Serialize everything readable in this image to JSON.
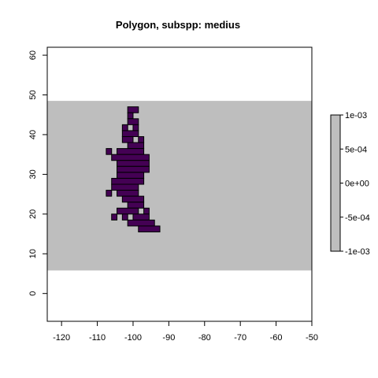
{
  "chart_data": {
    "type": "heatmap",
    "title": "Polygon, subspp: medius",
    "xlabel": "",
    "ylabel": "",
    "xlim": [
      -124,
      -50
    ],
    "ylim": [
      -7,
      62
    ],
    "x_ticks": [
      -120,
      -110,
      -100,
      -90,
      -80,
      -70,
      -60,
      -50
    ],
    "y_ticks": [
      0,
      10,
      20,
      30,
      40,
      50,
      60
    ],
    "background_band": {
      "y_from": 5.8,
      "y_to": 48.5,
      "color": "#bebebe"
    },
    "cell_size_deg": 1.5,
    "cell_color": "#440154",
    "cell_border_color": "#000000",
    "rows": [
      {
        "y": 45.5,
        "x_ranges": [
          [
            -101.5,
            -98.5
          ]
        ]
      },
      {
        "y": 44.0,
        "x_ranges": [
          [
            -101.5,
            -100.0
          ]
        ]
      },
      {
        "y": 42.5,
        "x_ranges": [
          [
            -101.5,
            -98.5
          ]
        ]
      },
      {
        "y": 41.0,
        "x_ranges": [
          [
            -103.0,
            -101.5
          ],
          [
            -100.0,
            -98.5
          ]
        ]
      },
      {
        "y": 39.5,
        "x_ranges": [
          [
            -103.0,
            -98.5
          ]
        ]
      },
      {
        "y": 38.0,
        "x_ranges": [
          [
            -103.0,
            -100.0
          ],
          [
            -98.5,
            -97.0
          ]
        ]
      },
      {
        "y": 36.5,
        "x_ranges": [
          [
            -101.5,
            -97.0
          ]
        ]
      },
      {
        "y": 35.0,
        "x_ranges": [
          [
            -107.5,
            -106.0
          ],
          [
            -104.5,
            -97.0
          ]
        ]
      },
      {
        "y": 33.5,
        "x_ranges": [
          [
            -106.0,
            -95.5
          ]
        ]
      },
      {
        "y": 32.0,
        "x_ranges": [
          [
            -104.5,
            -95.5
          ]
        ]
      },
      {
        "y": 30.5,
        "x_ranges": [
          [
            -104.5,
            -95.5
          ]
        ]
      },
      {
        "y": 29.0,
        "x_ranges": [
          [
            -104.5,
            -97.0
          ]
        ]
      },
      {
        "y": 27.5,
        "x_ranges": [
          [
            -106.0,
            -97.0
          ]
        ]
      },
      {
        "y": 26.0,
        "x_ranges": [
          [
            -106.0,
            -98.5
          ]
        ]
      },
      {
        "y": 24.5,
        "x_ranges": [
          [
            -107.5,
            -106.0
          ],
          [
            -104.5,
            -98.5
          ]
        ]
      },
      {
        "y": 23.0,
        "x_ranges": [
          [
            -103.0,
            -97.0
          ]
        ]
      },
      {
        "y": 21.5,
        "x_ranges": [
          [
            -101.5,
            -97.0
          ]
        ]
      },
      {
        "y": 20.0,
        "x_ranges": [
          [
            -104.5,
            -98.5
          ],
          [
            -97.0,
            -95.5
          ]
        ]
      },
      {
        "y": 18.5,
        "x_ranges": [
          [
            -106.0,
            -104.5
          ],
          [
            -103.0,
            -101.5
          ],
          [
            -100.0,
            -95.5
          ]
        ]
      },
      {
        "y": 17.0,
        "x_ranges": [
          [
            -101.5,
            -94.0
          ]
        ]
      },
      {
        "y": 15.5,
        "x_ranges": [
          [
            -98.5,
            -92.5
          ]
        ]
      }
    ],
    "legend": {
      "position": "right",
      "ticks": [
        {
          "value": 0.001,
          "label": "1e-03"
        },
        {
          "value": 0.0005,
          "label": "5e-04"
        },
        {
          "value": 0,
          "label": "0e+00"
        },
        {
          "value": -0.0005,
          "label": "-5e-04"
        },
        {
          "value": -0.001,
          "label": "-1e-03"
        }
      ],
      "range": [
        -0.001,
        0.001
      ],
      "color": "#bebebe"
    }
  }
}
